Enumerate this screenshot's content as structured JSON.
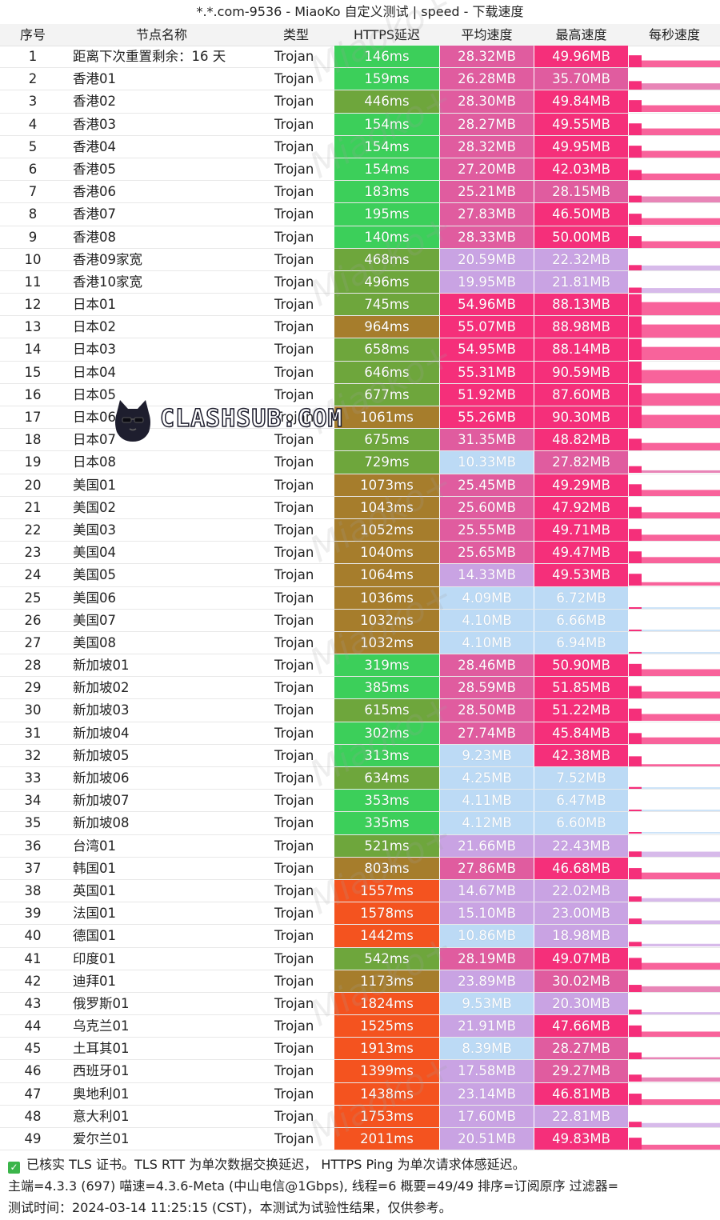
{
  "window": {
    "title": "*.*.com-9536 - MiaoKo 自定义测试 | speed - 下载速度"
  },
  "table": {
    "headers": {
      "index": "序号",
      "name": "节点名称",
      "type": "类型",
      "latency": "HTTPS延迟",
      "avg_speed": "平均速度",
      "max_speed": "最高速度",
      "per_second": "每秒速度"
    },
    "rows": [
      {
        "idx": "1",
        "name": "距离下次重置剩余：16 天",
        "type": "Trojan",
        "lat": "146ms",
        "avg": "28.32MB",
        "max": "49.96MB"
      },
      {
        "idx": "2",
        "name": "香港01",
        "type": "Trojan",
        "lat": "159ms",
        "avg": "26.28MB",
        "max": "35.70MB"
      },
      {
        "idx": "3",
        "name": "香港02",
        "type": "Trojan",
        "lat": "446ms",
        "avg": "28.30MB",
        "max": "49.84MB"
      },
      {
        "idx": "4",
        "name": "香港03",
        "type": "Trojan",
        "lat": "154ms",
        "avg": "28.27MB",
        "max": "49.55MB"
      },
      {
        "idx": "5",
        "name": "香港04",
        "type": "Trojan",
        "lat": "154ms",
        "avg": "28.32MB",
        "max": "49.95MB"
      },
      {
        "idx": "6",
        "name": "香港05",
        "type": "Trojan",
        "lat": "154ms",
        "avg": "27.20MB",
        "max": "42.03MB"
      },
      {
        "idx": "7",
        "name": "香港06",
        "type": "Trojan",
        "lat": "183ms",
        "avg": "25.21MB",
        "max": "28.15MB"
      },
      {
        "idx": "8",
        "name": "香港07",
        "type": "Trojan",
        "lat": "195ms",
        "avg": "27.83MB",
        "max": "46.50MB"
      },
      {
        "idx": "9",
        "name": "香港08",
        "type": "Trojan",
        "lat": "140ms",
        "avg": "28.33MB",
        "max": "50.00MB"
      },
      {
        "idx": "10",
        "name": "香港09家宽",
        "type": "Trojan",
        "lat": "468ms",
        "avg": "20.59MB",
        "max": "22.32MB"
      },
      {
        "idx": "11",
        "name": "香港10家宽",
        "type": "Trojan",
        "lat": "496ms",
        "avg": "19.95MB",
        "max": "21.81MB"
      },
      {
        "idx": "12",
        "name": "日本01",
        "type": "Trojan",
        "lat": "745ms",
        "avg": "54.96MB",
        "max": "88.13MB"
      },
      {
        "idx": "13",
        "name": "日本02",
        "type": "Trojan",
        "lat": "964ms",
        "avg": "55.07MB",
        "max": "88.98MB"
      },
      {
        "idx": "14",
        "name": "日本03",
        "type": "Trojan",
        "lat": "658ms",
        "avg": "54.95MB",
        "max": "88.14MB"
      },
      {
        "idx": "15",
        "name": "日本04",
        "type": "Trojan",
        "lat": "646ms",
        "avg": "55.31MB",
        "max": "90.59MB"
      },
      {
        "idx": "16",
        "name": "日本05",
        "type": "Trojan",
        "lat": "677ms",
        "avg": "51.92MB",
        "max": "87.60MB"
      },
      {
        "idx": "17",
        "name": "日本06",
        "type": "Trojan",
        "lat": "1061ms",
        "avg": "55.26MB",
        "max": "90.30MB"
      },
      {
        "idx": "18",
        "name": "日本07",
        "type": "Trojan",
        "lat": "675ms",
        "avg": "31.35MB",
        "max": "48.82MB"
      },
      {
        "idx": "19",
        "name": "日本08",
        "type": "Trojan",
        "lat": "729ms",
        "avg": "10.33MB",
        "max": "27.82MB"
      },
      {
        "idx": "20",
        "name": "美国01",
        "type": "Trojan",
        "lat": "1073ms",
        "avg": "25.45MB",
        "max": "49.29MB"
      },
      {
        "idx": "21",
        "name": "美国02",
        "type": "Trojan",
        "lat": "1043ms",
        "avg": "25.60MB",
        "max": "47.92MB"
      },
      {
        "idx": "22",
        "name": "美国03",
        "type": "Trojan",
        "lat": "1052ms",
        "avg": "25.55MB",
        "max": "49.71MB"
      },
      {
        "idx": "23",
        "name": "美国04",
        "type": "Trojan",
        "lat": "1040ms",
        "avg": "25.65MB",
        "max": "49.47MB"
      },
      {
        "idx": "24",
        "name": "美国05",
        "type": "Trojan",
        "lat": "1064ms",
        "avg": "14.33MB",
        "max": "49.53MB"
      },
      {
        "idx": "25",
        "name": "美国06",
        "type": "Trojan",
        "lat": "1036ms",
        "avg": "4.09MB",
        "max": "6.72MB"
      },
      {
        "idx": "26",
        "name": "美国07",
        "type": "Trojan",
        "lat": "1032ms",
        "avg": "4.10MB",
        "max": "6.66MB"
      },
      {
        "idx": "27",
        "name": "美国08",
        "type": "Trojan",
        "lat": "1032ms",
        "avg": "4.10MB",
        "max": "6.94MB"
      },
      {
        "idx": "28",
        "name": "新加坡01",
        "type": "Trojan",
        "lat": "319ms",
        "avg": "28.46MB",
        "max": "50.90MB"
      },
      {
        "idx": "29",
        "name": "新加坡02",
        "type": "Trojan",
        "lat": "385ms",
        "avg": "28.59MB",
        "max": "51.85MB"
      },
      {
        "idx": "30",
        "name": "新加坡03",
        "type": "Trojan",
        "lat": "615ms",
        "avg": "28.50MB",
        "max": "51.22MB"
      },
      {
        "idx": "31",
        "name": "新加坡04",
        "type": "Trojan",
        "lat": "302ms",
        "avg": "27.74MB",
        "max": "45.84MB"
      },
      {
        "idx": "32",
        "name": "新加坡05",
        "type": "Trojan",
        "lat": "313ms",
        "avg": "9.23MB",
        "max": "42.38MB"
      },
      {
        "idx": "33",
        "name": "新加坡06",
        "type": "Trojan",
        "lat": "634ms",
        "avg": "4.25MB",
        "max": "7.52MB"
      },
      {
        "idx": "34",
        "name": "新加坡07",
        "type": "Trojan",
        "lat": "353ms",
        "avg": "4.11MB",
        "max": "6.47MB"
      },
      {
        "idx": "35",
        "name": "新加坡08",
        "type": "Trojan",
        "lat": "335ms",
        "avg": "4.12MB",
        "max": "6.60MB"
      },
      {
        "idx": "36",
        "name": "台湾01",
        "type": "Trojan",
        "lat": "521ms",
        "avg": "21.66MB",
        "max": "22.43MB"
      },
      {
        "idx": "37",
        "name": "韩国01",
        "type": "Trojan",
        "lat": "803ms",
        "avg": "27.86MB",
        "max": "46.68MB"
      },
      {
        "idx": "38",
        "name": "英国01",
        "type": "Trojan",
        "lat": "1557ms",
        "avg": "14.67MB",
        "max": "22.02MB"
      },
      {
        "idx": "39",
        "name": "法国01",
        "type": "Trojan",
        "lat": "1578ms",
        "avg": "15.10MB",
        "max": "23.00MB"
      },
      {
        "idx": "40",
        "name": "德国01",
        "type": "Trojan",
        "lat": "1442ms",
        "avg": "10.86MB",
        "max": "18.98MB"
      },
      {
        "idx": "41",
        "name": "印度01",
        "type": "Trojan",
        "lat": "542ms",
        "avg": "28.19MB",
        "max": "49.07MB"
      },
      {
        "idx": "42",
        "name": "迪拜01",
        "type": "Trojan",
        "lat": "1173ms",
        "avg": "23.89MB",
        "max": "30.02MB"
      },
      {
        "idx": "43",
        "name": "俄罗斯01",
        "type": "Trojan",
        "lat": "1824ms",
        "avg": "9.53MB",
        "max": "20.30MB"
      },
      {
        "idx": "44",
        "name": "乌克兰01",
        "type": "Trojan",
        "lat": "1525ms",
        "avg": "21.91MB",
        "max": "47.66MB"
      },
      {
        "idx": "45",
        "name": "土耳其01",
        "type": "Trojan",
        "lat": "1913ms",
        "avg": "8.39MB",
        "max": "28.27MB"
      },
      {
        "idx": "46",
        "name": "西班牙01",
        "type": "Trojan",
        "lat": "1399ms",
        "avg": "17.58MB",
        "max": "29.27MB"
      },
      {
        "idx": "47",
        "name": "奥地利01",
        "type": "Trojan",
        "lat": "1438ms",
        "avg": "23.14MB",
        "max": "46.81MB"
      },
      {
        "idx": "48",
        "name": "意大利01",
        "type": "Trojan",
        "lat": "1753ms",
        "avg": "17.60MB",
        "max": "22.81MB"
      },
      {
        "idx": "49",
        "name": "爱尔兰01",
        "type": "Trojan",
        "lat": "2011ms",
        "avg": "20.51MB",
        "max": "49.83MB"
      }
    ]
  },
  "colors": {
    "latency_fast": "#3ccf5a",
    "latency_mid": "#6ea63c",
    "latency_slow": "#a67d2c",
    "latency_very_slow": "#f4531f",
    "speed_low": "#bcdaf5",
    "speed_mid": "#c9a3e3",
    "speed_high": "#e05c9f",
    "speed_top": "#f52f7a",
    "spark": "#f52f7a"
  },
  "watermark": {
    "text": "CLASHSUB.COM",
    "icon": "black-cat-mascot-icon",
    "faint_text": "Miaoko+"
  },
  "footer": {
    "check_icon": "checkbox-checked-icon",
    "line1": "已核实 TLS 证书。TLS RTT 为单次数据交换延迟， HTTPS Ping 为单次请求体感延迟。",
    "line2": "主端=4.3.3 (697) 喵速=4.3.6-Meta (中山电信@1Gbps), 线程=6 概要=49/49 排序=订阅原序 过滤器=",
    "line3": "测试时间：2024-03-14 11:25:15 (CST)，本测试为试验性结果，仅供参考。"
  }
}
